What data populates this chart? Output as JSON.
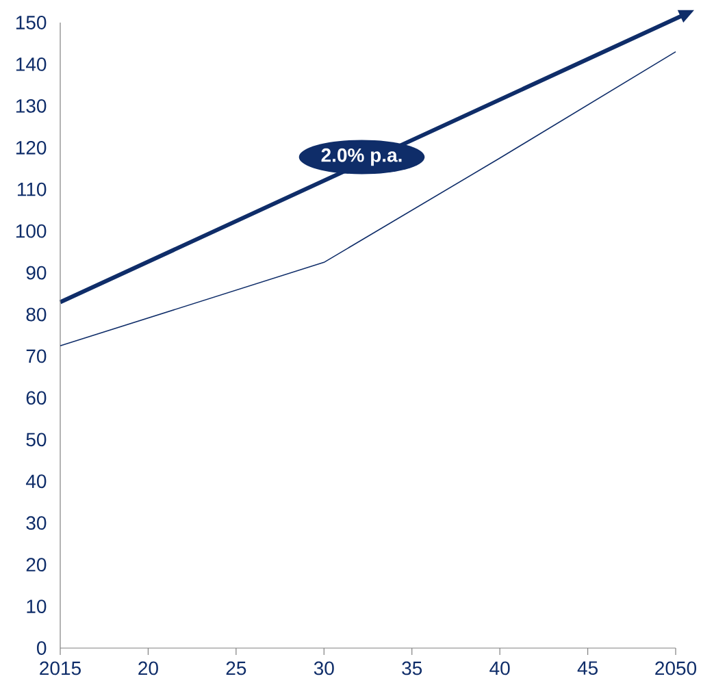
{
  "chart_data": {
    "type": "line",
    "x": [
      2015,
      2030,
      2040,
      2050
    ],
    "values": [
      72.5,
      92.5,
      117.5,
      143
    ],
    "color": "#0f2d69",
    "xlim": [
      2015,
      2050
    ],
    "ylim": [
      0,
      150
    ],
    "xticks": [
      2015,
      {
        "value": 2020,
        "label": "20"
      },
      {
        "value": 2025,
        "label": "25"
      },
      {
        "value": 2030,
        "label": "30"
      },
      {
        "value": 2035,
        "label": "35"
      },
      {
        "value": 2040,
        "label": "40"
      },
      {
        "value": 2045,
        "label": "45"
      },
      2050
    ],
    "yticks": [
      0,
      10,
      20,
      30,
      40,
      50,
      60,
      70,
      80,
      90,
      100,
      110,
      120,
      130,
      140,
      150
    ],
    "annotations": [
      "2.0% p.a."
    ],
    "grid": false,
    "marker": "none",
    "line_style": "solid"
  }
}
